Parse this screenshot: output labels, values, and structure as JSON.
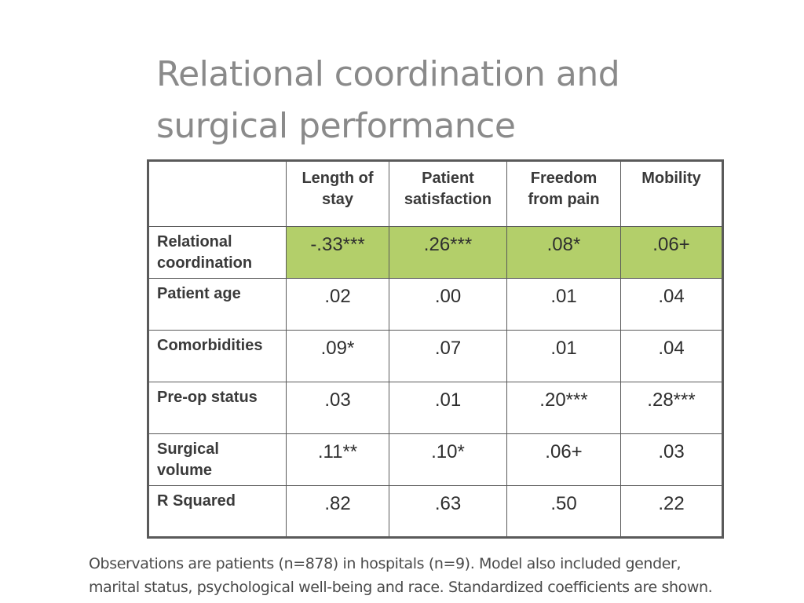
{
  "slide": {
    "title_line1": "Relational coordination and",
    "title_line2": "surgical performance"
  },
  "table": {
    "columns": [
      {
        "line1": "Length of",
        "line2": "stay"
      },
      {
        "line1": "Patient",
        "line2": "satisfaction"
      },
      {
        "line1": "Freedom",
        "line2": "from pain"
      },
      {
        "line1": "Mobility",
        "line2": ""
      }
    ],
    "rows": [
      {
        "label_line1": "Relational",
        "label_line2": "coordination",
        "values": [
          "-.33***",
          ".26***",
          ".08*",
          ".06+"
        ],
        "highlighted": true
      },
      {
        "label_line1": "Patient age",
        "label_line2": "",
        "values": [
          ".02",
          ".00",
          ".01",
          ".04"
        ]
      },
      {
        "label_line1": "Comorbidities",
        "label_line2": "",
        "values": [
          ".09*",
          ".07",
          ".01",
          ".04"
        ]
      },
      {
        "label_line1": "Pre-op status",
        "label_line2": "",
        "values": [
          ".03",
          ".01",
          ".20***",
          ".28***"
        ]
      },
      {
        "label_line1": "Surgical",
        "label_line2": "volume",
        "values": [
          ".11**",
          ".10*",
          ".06+",
          ".03"
        ]
      },
      {
        "label_line1": "R Squared",
        "label_line2": "",
        "values": [
          ".82",
          ".63",
          ".50",
          ".22"
        ]
      }
    ],
    "highlight_color": "#b3cf6a"
  },
  "footnote": {
    "line1": "Observations are patients (n=878) in hospitals (n=9).  Model also included gender,",
    "line2": "marital status, psychological well-being and race.  Standardized coefficients are shown."
  }
}
